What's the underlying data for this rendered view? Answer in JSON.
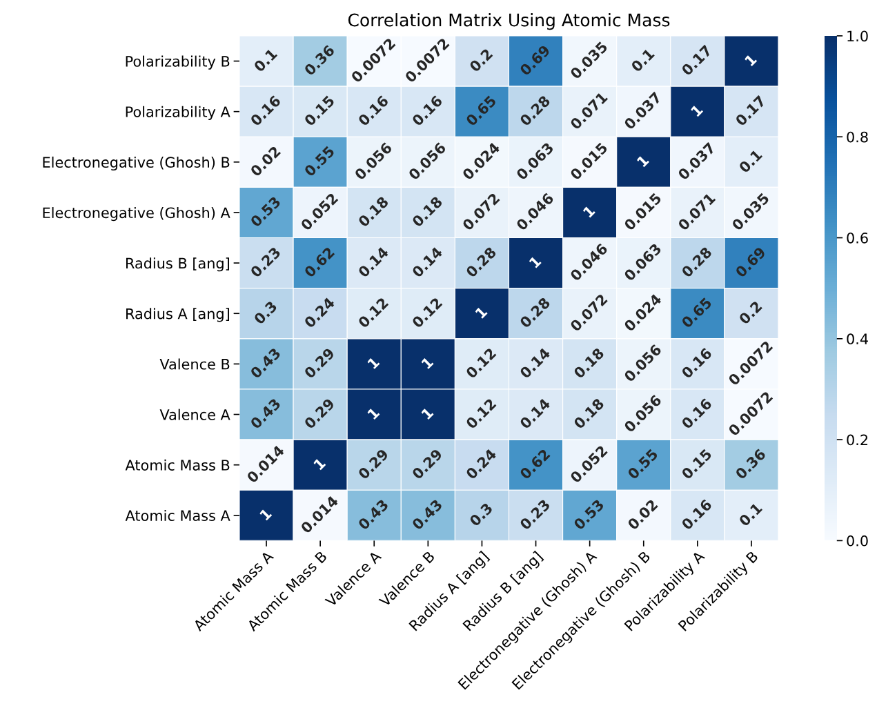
{
  "chart_data": {
    "type": "heatmap",
    "title": "Correlation Matrix Using Atomic Mass",
    "categories": [
      "Atomic Mass A",
      "Atomic Mass B",
      "Valence A",
      "Valence B",
      "Radius A [ang]",
      "Radius B [ang]",
      "Electronegative (Ghosh) A",
      "Electronegative (Ghosh) B",
      "Polarizability A",
      "Polarizability B"
    ],
    "y_categories": [
      "Polarizability B",
      "Polarizability A",
      "Electronegative (Ghosh) B",
      "Electronegative (Ghosh) A",
      "Radius B [ang]",
      "Radius A [ang]",
      "Valence B",
      "Valence A",
      "Atomic Mass B",
      "Atomic Mass A"
    ],
    "cells": [
      [
        0.1,
        0.36,
        0.0072,
        0.0072,
        0.2,
        0.69,
        0.035,
        0.1,
        0.17,
        1
      ],
      [
        0.16,
        0.15,
        0.16,
        0.16,
        0.65,
        0.28,
        0.071,
        0.037,
        1,
        0.17
      ],
      [
        0.02,
        0.55,
        0.056,
        0.056,
        0.024,
        0.063,
        0.015,
        1,
        0.037,
        0.1
      ],
      [
        0.53,
        0.052,
        0.18,
        0.18,
        0.072,
        0.046,
        1,
        0.015,
        0.071,
        0.035
      ],
      [
        0.23,
        0.62,
        0.14,
        0.14,
        0.28,
        1,
        0.046,
        0.063,
        0.28,
        0.69
      ],
      [
        0.3,
        0.24,
        0.12,
        0.12,
        1,
        0.28,
        0.072,
        0.024,
        0.65,
        0.2
      ],
      [
        0.43,
        0.29,
        1,
        1,
        0.12,
        0.14,
        0.18,
        0.056,
        0.16,
        0.0072
      ],
      [
        0.43,
        0.29,
        1,
        1,
        0.12,
        0.14,
        0.18,
        0.056,
        0.16,
        0.0072
      ],
      [
        0.014,
        1,
        0.29,
        0.29,
        0.24,
        0.62,
        0.052,
        0.55,
        0.15,
        0.36
      ],
      [
        1,
        0.014,
        0.43,
        0.43,
        0.3,
        0.23,
        0.53,
        0.02,
        0.16,
        0.1
      ]
    ],
    "clim": [
      0,
      1
    ],
    "cticks": [
      {
        "value": 0,
        "label": "0.0"
      },
      {
        "value": 0.2,
        "label": "0.2"
      },
      {
        "value": 0.4,
        "label": "0.4"
      },
      {
        "value": 0.6,
        "label": "0.6"
      },
      {
        "value": 0.8,
        "label": "0.8"
      },
      {
        "value": 1,
        "label": "1.0"
      }
    ],
    "data_labels": true
  }
}
